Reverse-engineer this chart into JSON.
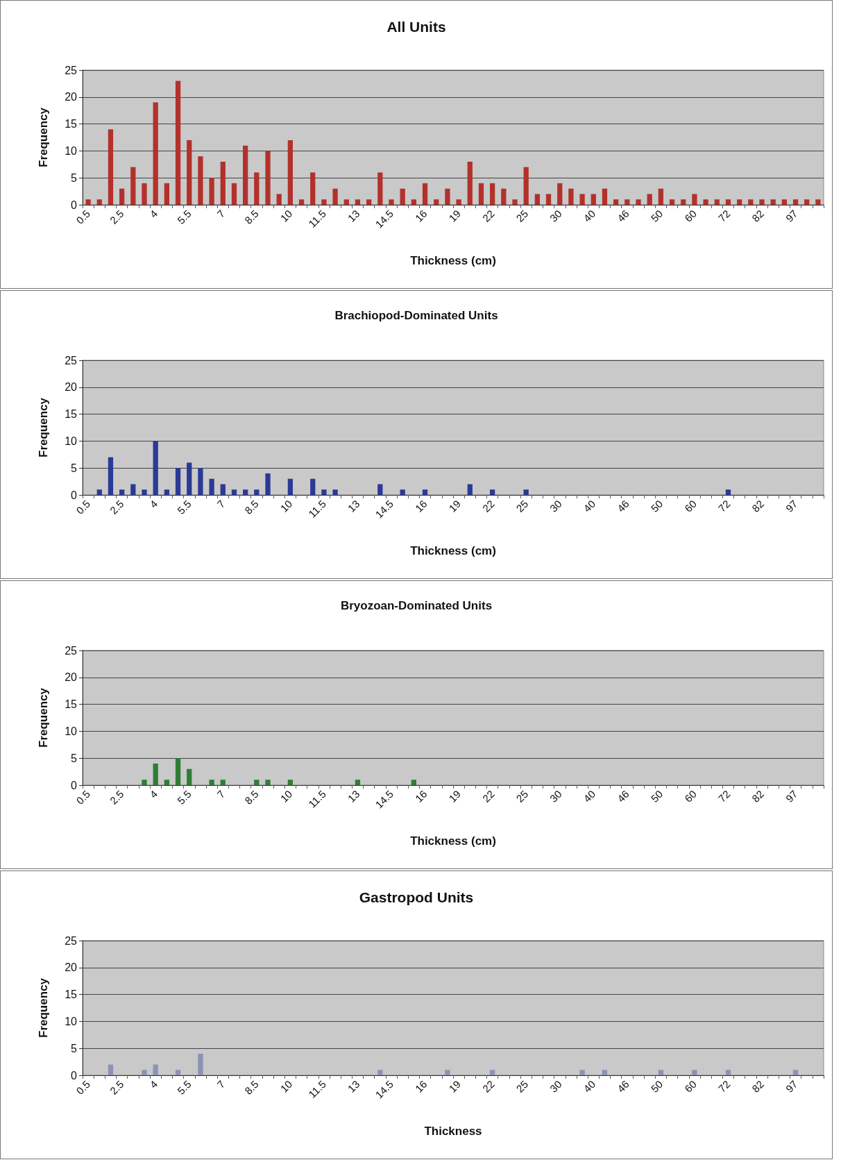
{
  "chart_data": [
    {
      "type": "bar",
      "title": "All Units",
      "xlabel": "Thickness (cm)",
      "ylabel": "Frequency",
      "categories": [
        "0.5",
        null,
        null,
        "2.5",
        null,
        null,
        "4",
        null,
        null,
        "5.5",
        null,
        null,
        "7",
        null,
        null,
        "8.5",
        null,
        null,
        "10",
        null,
        null,
        "11.5",
        null,
        null,
        "13",
        null,
        null,
        "14.5",
        null,
        null,
        "16",
        null,
        null,
        "19",
        null,
        null,
        "22",
        null,
        null,
        "25",
        null,
        null,
        "30",
        null,
        null,
        "40",
        null,
        null,
        "46",
        null,
        null,
        "50",
        null,
        null,
        "60",
        null,
        null,
        "72",
        null,
        null,
        "82",
        null,
        null,
        "97",
        null,
        null
      ],
      "values": [
        1,
        1,
        14,
        3,
        7,
        4,
        19,
        4,
        23,
        12,
        9,
        5,
        8,
        4,
        11,
        6,
        10,
        2,
        12,
        1,
        6,
        1,
        3,
        1,
        1,
        1,
        6,
        1,
        3,
        1,
        4,
        1,
        3,
        1,
        8,
        4,
        4,
        3,
        1,
        7,
        2,
        2,
        4,
        3,
        2,
        2,
        3,
        1,
        1,
        1,
        2,
        3,
        1,
        1,
        2,
        1,
        1,
        1,
        1,
        1,
        1,
        1,
        1,
        1,
        1,
        1
      ],
      "color": "#b3312b",
      "ylim": [
        0,
        25
      ],
      "yticks": [
        0,
        5,
        10,
        15,
        20,
        25
      ],
      "grid": "y"
    },
    {
      "type": "bar",
      "title": "Brachiopod-Dominated Units",
      "xlabel": "Thickness (cm)",
      "ylabel": "Frequency",
      "categories": [
        "0.5",
        null,
        null,
        "2.5",
        null,
        null,
        "4",
        null,
        null,
        "5.5",
        null,
        null,
        "7",
        null,
        null,
        "8.5",
        null,
        null,
        "10",
        null,
        null,
        "11.5",
        null,
        null,
        "13",
        null,
        null,
        "14.5",
        null,
        null,
        "16",
        null,
        null,
        "19",
        null,
        null,
        "22",
        null,
        null,
        "25",
        null,
        null,
        "30",
        null,
        null,
        "40",
        null,
        null,
        "46",
        null,
        null,
        "50",
        null,
        null,
        "60",
        null,
        null,
        "72",
        null,
        null,
        "82",
        null,
        null,
        "97",
        null,
        null
      ],
      "values": [
        null,
        1,
        7,
        1,
        2,
        1,
        10,
        1,
        5,
        6,
        5,
        3,
        2,
        1,
        1,
        1,
        4,
        null,
        3,
        null,
        3,
        1,
        1,
        null,
        null,
        null,
        2,
        null,
        1,
        null,
        1,
        null,
        null,
        null,
        2,
        null,
        1,
        null,
        null,
        1,
        null,
        null,
        null,
        null,
        null,
        null,
        null,
        null,
        null,
        null,
        null,
        null,
        null,
        null,
        null,
        null,
        null,
        1,
        null,
        null,
        null,
        null,
        null,
        null,
        null,
        null
      ],
      "color": "#2b3a96",
      "ylim": [
        0,
        25
      ],
      "yticks": [
        0,
        5,
        10,
        15,
        20,
        25
      ],
      "grid": "y"
    },
    {
      "type": "bar",
      "title": "Bryozoan-Dominated Units",
      "xlabel": "Thickness (cm)",
      "ylabel": "Frequency",
      "categories": [
        "0.5",
        null,
        null,
        "2.5",
        null,
        null,
        "4",
        null,
        null,
        "5.5",
        null,
        null,
        "7",
        null,
        null,
        "8.5",
        null,
        null,
        "10",
        null,
        null,
        "11.5",
        null,
        null,
        "13",
        null,
        null,
        "14.5",
        null,
        null,
        "16",
        null,
        null,
        "19",
        null,
        null,
        "22",
        null,
        null,
        "25",
        null,
        null,
        "30",
        null,
        null,
        "40",
        null,
        null,
        "46",
        null,
        null,
        "50",
        null,
        null,
        "60",
        null,
        null,
        "72",
        null,
        null,
        "82",
        null,
        null,
        "97",
        null,
        null
      ],
      "values": [
        null,
        null,
        null,
        null,
        null,
        1,
        4,
        1,
        5,
        3,
        null,
        1,
        1,
        null,
        null,
        1,
        1,
        null,
        1,
        null,
        null,
        null,
        null,
        null,
        1,
        null,
        null,
        null,
        null,
        1,
        null,
        null,
        null,
        null,
        null,
        null,
        null,
        null,
        null,
        null,
        null,
        null,
        null,
        null,
        null,
        null,
        null,
        null,
        null,
        null,
        null,
        null,
        null,
        null,
        null,
        null,
        null,
        null,
        null,
        null,
        null,
        null,
        null,
        null,
        null,
        null
      ],
      "color": "#2f7d34",
      "ylim": [
        0,
        25
      ],
      "yticks": [
        0,
        5,
        10,
        15,
        20,
        25
      ],
      "grid": "y"
    },
    {
      "type": "bar",
      "title": "Gastropod Units",
      "xlabel": "Thickness",
      "ylabel": "Frequency",
      "categories": [
        "0.5",
        null,
        null,
        "2.5",
        null,
        null,
        "4",
        null,
        null,
        "5.5",
        null,
        null,
        "7",
        null,
        null,
        "8.5",
        null,
        null,
        "10",
        null,
        null,
        "11.5",
        null,
        null,
        "13",
        null,
        null,
        "14.5",
        null,
        null,
        "16",
        null,
        null,
        "19",
        null,
        null,
        "22",
        null,
        null,
        "25",
        null,
        null,
        "30",
        null,
        null,
        "40",
        null,
        null,
        "46",
        null,
        null,
        "50",
        null,
        null,
        "60",
        null,
        null,
        "72",
        null,
        null,
        "82",
        null,
        null,
        "97",
        null,
        null
      ],
      "values": [
        null,
        null,
        2,
        null,
        null,
        1,
        2,
        null,
        1,
        null,
        4,
        null,
        null,
        null,
        null,
        null,
        null,
        null,
        null,
        null,
        null,
        null,
        null,
        null,
        null,
        null,
        1,
        null,
        null,
        null,
        null,
        null,
        1,
        null,
        null,
        null,
        1,
        null,
        null,
        null,
        null,
        null,
        null,
        null,
        1,
        null,
        1,
        null,
        null,
        null,
        null,
        1,
        null,
        null,
        1,
        null,
        null,
        1,
        null,
        null,
        null,
        null,
        null,
        1,
        null,
        null
      ],
      "color": "#8a93b5",
      "ylim": [
        0,
        25
      ],
      "yticks": [
        0,
        5,
        10,
        15,
        20,
        25
      ],
      "grid": "y"
    }
  ]
}
